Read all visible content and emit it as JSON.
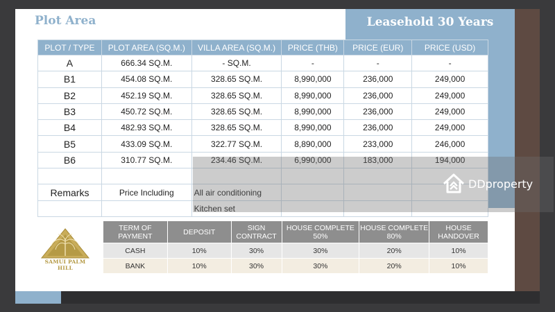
{
  "header": {
    "title": "Plot Area",
    "lease": "Leasehold 30 Years"
  },
  "price_table": {
    "headers": [
      "PLOT / TYPE",
      "PLOT AREA (SQ.M.)",
      "VILLA AREA (SQ.M.)",
      "PRICE  (THB)",
      "PRICE  (EUR)",
      "PRICE  (USD)"
    ],
    "rows": [
      [
        "A",
        "666.34 SQ.M.",
        "- SQ.M.",
        "-",
        "-",
        "-"
      ],
      [
        "B1",
        "454.08 SQ.M.",
        "328.65 SQ.M.",
        "8,990,000",
        "236,000",
        "249,000"
      ],
      [
        "B2",
        "452.19 SQ.M.",
        "328.65 SQ.M.",
        "8,990,000",
        "236,000",
        "249,000"
      ],
      [
        "B3",
        "450.72 SQ.M.",
        "328.65 SQ.M.",
        "8,990,000",
        "236,000",
        "249,000"
      ],
      [
        "B4",
        "482.93 SQ.M.",
        "328.65 SQ.M.",
        "8,990,000",
        "236,000",
        "249,000"
      ],
      [
        "B5",
        "433.09 SQ.M.",
        "322.77 SQ.M.",
        "8,890,000",
        "233,000",
        "246,000"
      ],
      [
        "B6",
        "310.77 SQ.M.",
        "234.46 SQ.M.",
        "6,990,000",
        "183,000",
        "194,000"
      ]
    ],
    "remarks_label": "Remarks",
    "price_including": "Price Including",
    "includes": [
      "All air conditioning",
      "Kitchen set"
    ]
  },
  "terms_table": {
    "headers": [
      "TERM OF PAYMENT",
      "DEPOSIT",
      "SIGN CONTRACT",
      "HOUSE COMPLETE 50%",
      "HOUSE COMPLETE 80%",
      "HOUSE HANDOVER"
    ],
    "rows": [
      [
        "CASH",
        "10%",
        "30%",
        "30%",
        "20%",
        "10%"
      ],
      [
        "BANK",
        "10%",
        "30%",
        "30%",
        "20%",
        "10%"
      ]
    ]
  },
  "logo": {
    "text": "SAMUI PALM HILL",
    "icon": "palm-tree-pyramid-logo"
  },
  "watermark": {
    "text": "DDproperty",
    "icon": "ddproperty-house-icon"
  },
  "colors": {
    "accent_blue": "#8fb1cc",
    "brown": "#5e4a42",
    "gold": "#b59a45",
    "terms_header": "#8e8e8e"
  }
}
